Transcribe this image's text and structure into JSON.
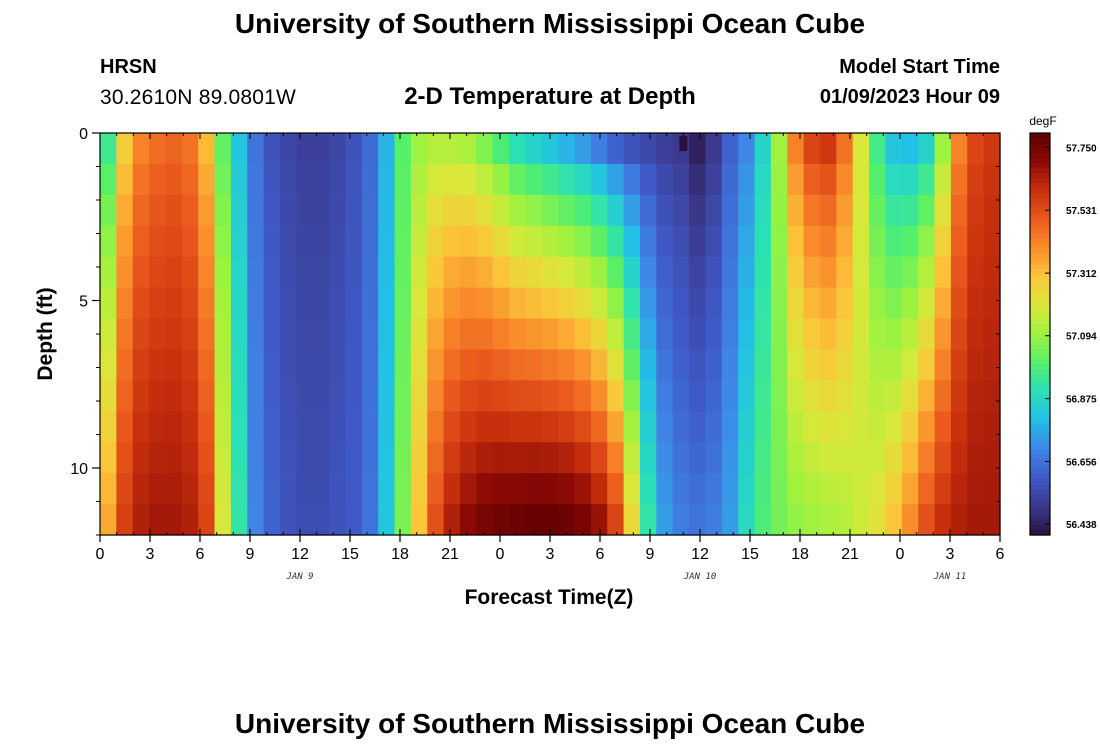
{
  "header": {
    "title": "University of Southern Mississippi Ocean Cube",
    "station": "HRSN",
    "coordinates": "30.2610N  89.0801W",
    "subtitle": "2-D Temperature at Depth",
    "model_start_label": "Model Start Time",
    "model_start_value": "01/09/2023 Hour 09"
  },
  "footer": {
    "title": "University of Southern Mississippi Ocean Cube"
  },
  "chart_data": {
    "type": "heatmap",
    "title": "2-D Temperature at Depth",
    "xlabel": "Forecast Time(Z)",
    "ylabel": "Depth (ft)",
    "x_tick_labels": [
      "0",
      "3",
      "6",
      "9",
      "12",
      "15",
      "18",
      "21",
      "0",
      "3",
      "6",
      "9",
      "12",
      "15",
      "18",
      "21",
      "0",
      "3",
      "6"
    ],
    "x_hours": [
      0,
      3,
      6,
      9,
      12,
      15,
      18,
      21,
      24,
      27,
      30,
      33,
      36,
      39,
      42,
      45,
      48,
      51,
      54
    ],
    "date_labels": [
      {
        "label": "JAN 9",
        "hour": 12
      },
      {
        "label": "JAN 10",
        "hour": 36
      },
      {
        "label": "JAN 11",
        "hour": 51
      }
    ],
    "y_ticks": [
      0,
      5,
      10
    ],
    "ylim": [
      0,
      12
    ],
    "y_inverted": true,
    "colorbar": {
      "unit": "degF",
      "ticks": [
        57.75,
        57.531,
        57.312,
        57.094,
        56.875,
        56.656,
        56.438
      ],
      "tick_labels": [
        "57.750",
        "57.531",
        "57.312",
        "57.094",
        "56.875",
        "56.656",
        "56.438"
      ],
      "range": [
        56.4,
        57.8
      ],
      "colormap": [
        "#2a1140",
        "#3b3a8e",
        "#3f5ac8",
        "#3f86e6",
        "#22bfe6",
        "#2be0b6",
        "#55ef6a",
        "#9ff23f",
        "#d9e83a",
        "#fbc63a",
        "#fa8d2b",
        "#ea5a1d",
        "#c8300d",
        "#8c0a06",
        "#5e0000"
      ]
    },
    "x_hours_grid": [
      0,
      1,
      2,
      3,
      4,
      5,
      6,
      7,
      8,
      9,
      10,
      11,
      12,
      13,
      14,
      15,
      16,
      17,
      18,
      19,
      20,
      21,
      22,
      23,
      24,
      25,
      26,
      27,
      28,
      29,
      30,
      31,
      32,
      33,
      34,
      35,
      36,
      37,
      38,
      39,
      40,
      41,
      42,
      43,
      44,
      45,
      46,
      47,
      48,
      49,
      50,
      51,
      52,
      53,
      54
    ],
    "depth_bins": [
      0,
      1,
      2,
      3,
      4,
      5,
      6,
      7,
      8,
      9,
      10,
      11,
      12
    ],
    "surface_series_degF": [
      56.95,
      57.28,
      57.42,
      57.46,
      57.48,
      57.45,
      57.32,
      57.02,
      56.82,
      56.66,
      56.58,
      56.54,
      56.52,
      56.52,
      56.54,
      56.58,
      56.64,
      56.78,
      57.0,
      57.1,
      57.14,
      57.14,
      57.12,
      57.06,
      56.98,
      56.9,
      56.86,
      56.82,
      56.78,
      56.74,
      56.68,
      56.62,
      56.58,
      56.55,
      56.52,
      56.5,
      56.44,
      56.5,
      56.62,
      56.7,
      56.86,
      57.1,
      57.42,
      57.55,
      57.58,
      57.45,
      57.2,
      56.96,
      56.82,
      56.8,
      56.86,
      57.1,
      57.42,
      57.55,
      57.58
    ],
    "bottom_series_degF": [
      57.35,
      57.56,
      57.64,
      57.66,
      57.66,
      57.64,
      57.55,
      57.2,
      56.92,
      56.7,
      56.62,
      56.58,
      56.56,
      56.56,
      56.58,
      56.6,
      56.66,
      56.82,
      57.05,
      57.3,
      57.52,
      57.64,
      57.7,
      57.74,
      57.76,
      57.77,
      57.78,
      57.78,
      57.77,
      57.74,
      57.68,
      57.55,
      57.25,
      56.92,
      56.74,
      56.68,
      56.66,
      56.68,
      56.74,
      56.88,
      56.98,
      57.04,
      57.08,
      57.1,
      57.12,
      57.14,
      57.18,
      57.22,
      57.3,
      57.4,
      57.52,
      57.6,
      57.64,
      57.66,
      57.66
    ],
    "surface_min": {
      "hour": 35,
      "depth_ft": 0.3,
      "value_degF": 56.4
    }
  }
}
